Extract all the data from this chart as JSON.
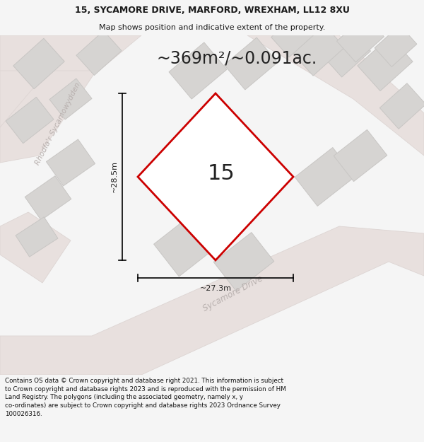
{
  "title_line1": "15, SYCAMORE DRIVE, MARFORD, WREXHAM, LL12 8XU",
  "title_line2": "Map shows position and indicative extent of the property.",
  "area_text": "~369m²/~0.091ac.",
  "property_number": "15",
  "dim_vertical": "~28.5m",
  "dim_horizontal": "~27.3m",
  "road_label1": "Rhodfa'r Sycamowydden",
  "road_label2": "Sycamore Drive",
  "footer_text": "Contains OS data © Crown copyright and database right 2021. This information is subject to Crown copyright and database rights 2023 and is reproduced with the permission of HM Land Registry. The polygons (including the associated geometry, namely x, y co-ordinates) are subject to Crown copyright and database rights 2023 Ordnance Survey 100026316.",
  "bg_color": "#f5f5f5",
  "map_bg": "#eeecea",
  "building_fill": "#d6d4d2",
  "building_edge": "#c8c6c4",
  "road_fill": "#e8e0de",
  "road_edge": "#ddd5d3",
  "road_text_color": "#b8b0ae",
  "property_fill": "#ffffff",
  "property_edge": "#cc0000",
  "property_lw": 2.0,
  "dim_color": "#222222",
  "title_color": "#1a1a1a",
  "footer_color": "#111111",
  "fig_width": 6.0,
  "fig_height": 6.25,
  "title_fontsize": 9,
  "subtitle_fontsize": 8,
  "area_fontsize": 17,
  "number_fontsize": 22,
  "dim_fontsize": 8,
  "road_fontsize1": 7.5,
  "road_fontsize2": 8.5,
  "footer_fontsize": 6.3
}
